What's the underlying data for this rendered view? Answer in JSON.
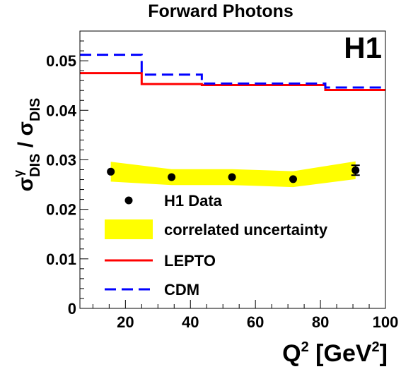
{
  "chart_data": {
    "type": "scatter",
    "title": "Forward Photons",
    "experiment_label": "H1",
    "xlabel": "Q2 [GeV2]",
    "xlabel_parts": {
      "base": "Q",
      "sup": "2",
      "unit_open": " [GeV",
      "unit_sup": "2",
      "unit_close": "]"
    },
    "ylabel_parts": {
      "sigma": "σ",
      "sup1": "γ",
      "sub1": "DIS",
      "slash": " / ",
      "sub2": "DIS"
    },
    "xlim": [
      6,
      100
    ],
    "ylim": [
      0,
      0.056
    ],
    "x_ticks": [
      20,
      40,
      60,
      80,
      100
    ],
    "x_tick_labels": [
      "20",
      "40",
      "60",
      "80",
      "100"
    ],
    "y_ticks": [
      0,
      0.01,
      0.02,
      0.03,
      0.04,
      0.05
    ],
    "y_tick_labels": [
      "0",
      "0.01",
      "0.02",
      "0.03",
      "0.04",
      "0.05"
    ],
    "series": [
      {
        "name": "H1 Data",
        "kind": "points",
        "color": "#000000",
        "x": [
          15.5,
          34.2,
          52.8,
          71.6,
          90.8
        ],
        "y": [
          0.0276,
          0.0265,
          0.0265,
          0.0261,
          0.0279
        ],
        "yerr": [
          0.0004,
          0.0004,
          0.0004,
          0.0004,
          0.001
        ]
      },
      {
        "name": "correlated uncertainty",
        "kind": "band",
        "color": "#ffff00",
        "x": [
          15.5,
          34.2,
          52.8,
          71.6,
          90.8
        ],
        "lower": [
          0.0256,
          0.0249,
          0.0249,
          0.0245,
          0.0261
        ],
        "upper": [
          0.0296,
          0.0281,
          0.0281,
          0.0277,
          0.0297
        ]
      },
      {
        "name": "LEPTO",
        "kind": "step",
        "color": "#ff0000",
        "edges": [
          6,
          25,
          43.5,
          81.5,
          100
        ],
        "values": [
          0.0475,
          0.0453,
          0.0451,
          0.0441
        ]
      },
      {
        "name": "CDM",
        "kind": "step",
        "color": "#0000ff",
        "edges": [
          6,
          25,
          43.5,
          81.5,
          100
        ],
        "values": [
          0.0512,
          0.0472,
          0.0454,
          0.0446
        ]
      }
    ],
    "legend_position": "bottom-left, inside plot"
  }
}
